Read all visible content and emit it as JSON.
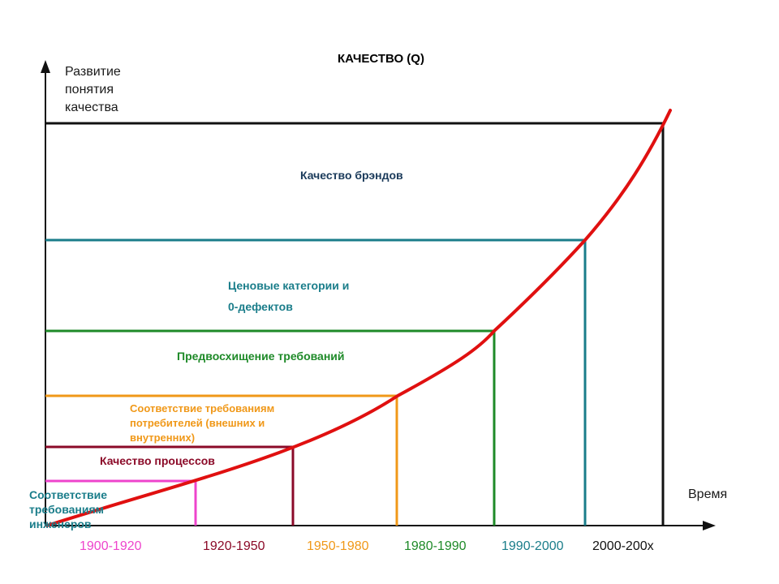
{
  "title": "КАЧЕСТВО (Q)",
  "y_axis_label": "Развитие понятия качества",
  "x_axis_label": "Время",
  "levels": [
    {
      "label": "Соответствие требованиям инженеров",
      "color": "#ee44cc",
      "period": "1900-1920"
    },
    {
      "label": "Качество процессов",
      "color": "#8b0a28",
      "period": "1920-1950"
    },
    {
      "label": "Соответствие требованиям потребителей (внешних и внутренних)",
      "color": "#f09818",
      "period": "1950-1980"
    },
    {
      "label": "Предвосхищение требований",
      "color": "#1e8a28",
      "period": "1980-1990"
    },
    {
      "label": "Ценовые категории и 0-дефектов",
      "color": "#1a7d8a",
      "period": "1990-2000"
    },
    {
      "label": "Качество брэндов",
      "color": "#111111",
      "period": "2000-200x"
    }
  ],
  "label_lines": {
    "level0": [
      "Соответствие",
      "требованиям",
      "инженеров"
    ],
    "level2": [
      "Соответствие требованиям",
      "потребителей (внешних и",
      "внутренних)"
    ],
    "level4": [
      "Ценовые категории и",
      "0-дефектов"
    ]
  },
  "curve_color": "#e01010"
}
